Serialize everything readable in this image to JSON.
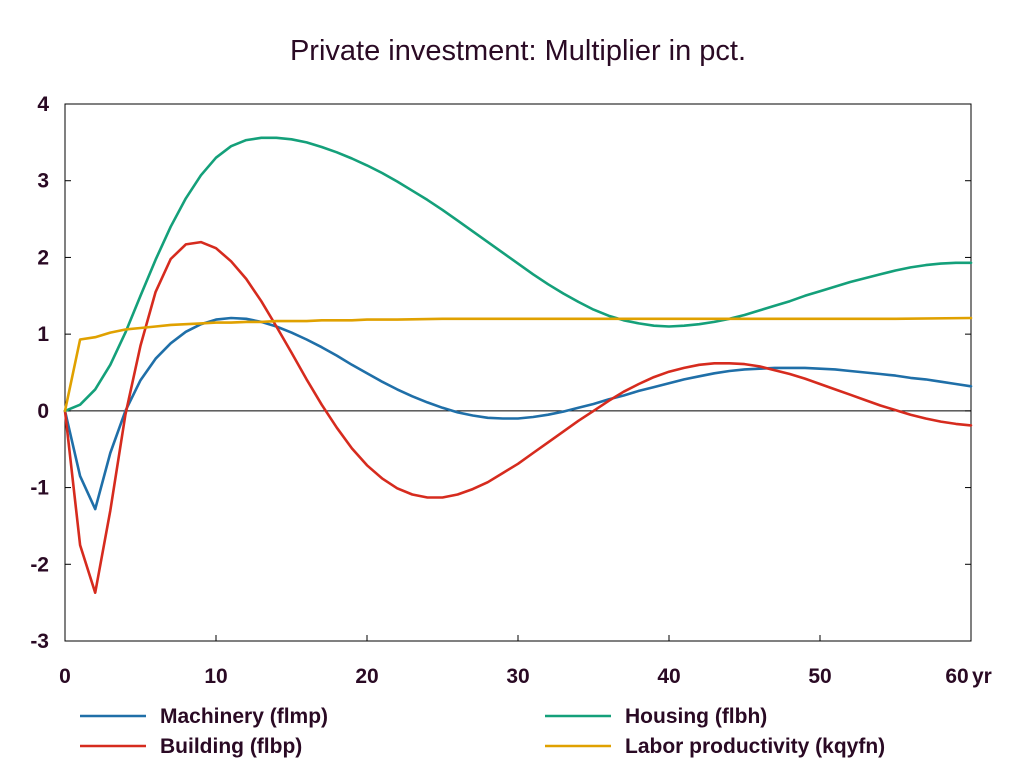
{
  "chart_data": {
    "type": "line",
    "title": "Private investment: Multiplier in pct.",
    "x_unit_label": "yr",
    "xlim": [
      0,
      60
    ],
    "ylim": [
      -3,
      4
    ],
    "x_ticks": [
      0,
      10,
      20,
      30,
      40,
      50,
      60
    ],
    "y_ticks": [
      -3,
      -2,
      -1,
      0,
      1,
      2,
      3,
      4
    ],
    "grid": false,
    "legend_placement": "bottom",
    "series": [
      {
        "name": "Machinery (flmp)",
        "color": "#1f6fa8",
        "points": [
          [
            0,
            0
          ],
          [
            1,
            -0.85
          ],
          [
            2,
            -1.28
          ],
          [
            3,
            -0.55
          ],
          [
            4,
            0
          ],
          [
            5,
            0.4
          ],
          [
            6,
            0.68
          ],
          [
            7,
            0.88
          ],
          [
            8,
            1.03
          ],
          [
            9,
            1.13
          ],
          [
            10,
            1.19
          ],
          [
            11,
            1.21
          ],
          [
            12,
            1.2
          ],
          [
            13,
            1.16
          ],
          [
            14,
            1.1
          ],
          [
            15,
            1.02
          ],
          [
            16,
            0.93
          ],
          [
            17,
            0.83
          ],
          [
            18,
            0.72
          ],
          [
            19,
            0.6
          ],
          [
            20,
            0.49
          ],
          [
            21,
            0.38
          ],
          [
            22,
            0.28
          ],
          [
            23,
            0.19
          ],
          [
            24,
            0.11
          ],
          [
            25,
            0.04
          ],
          [
            26,
            -0.02
          ],
          [
            27,
            -0.06
          ],
          [
            28,
            -0.09
          ],
          [
            29,
            -0.1
          ],
          [
            30,
            -0.1
          ],
          [
            31,
            -0.08
          ],
          [
            32,
            -0.05
          ],
          [
            33,
            -0.01
          ],
          [
            34,
            0.04
          ],
          [
            35,
            0.09
          ],
          [
            36,
            0.15
          ],
          [
            37,
            0.2
          ],
          [
            38,
            0.26
          ],
          [
            39,
            0.31
          ],
          [
            40,
            0.36
          ],
          [
            41,
            0.41
          ],
          [
            42,
            0.45
          ],
          [
            43,
            0.49
          ],
          [
            44,
            0.52
          ],
          [
            45,
            0.54
          ],
          [
            46,
            0.55
          ],
          [
            47,
            0.56
          ],
          [
            48,
            0.56
          ],
          [
            49,
            0.56
          ],
          [
            50,
            0.55
          ],
          [
            51,
            0.54
          ],
          [
            52,
            0.52
          ],
          [
            53,
            0.5
          ],
          [
            54,
            0.48
          ],
          [
            55,
            0.46
          ],
          [
            56,
            0.43
          ],
          [
            57,
            0.41
          ],
          [
            58,
            0.38
          ],
          [
            59,
            0.35
          ],
          [
            60,
            0.32
          ]
        ]
      },
      {
        "name": "Building (flbp)",
        "color": "#d62b1e",
        "points": [
          [
            0,
            0
          ],
          [
            1,
            -1.75
          ],
          [
            2,
            -2.37
          ],
          [
            3,
            -1.3
          ],
          [
            4,
            -0.05
          ],
          [
            5,
            0.85
          ],
          [
            6,
            1.55
          ],
          [
            7,
            1.98
          ],
          [
            8,
            2.17
          ],
          [
            9,
            2.2
          ],
          [
            10,
            2.12
          ],
          [
            11,
            1.95
          ],
          [
            12,
            1.72
          ],
          [
            13,
            1.43
          ],
          [
            14,
            1.1
          ],
          [
            15,
            0.76
          ],
          [
            16,
            0.41
          ],
          [
            17,
            0.08
          ],
          [
            18,
            -0.22
          ],
          [
            19,
            -0.49
          ],
          [
            20,
            -0.71
          ],
          [
            21,
            -0.88
          ],
          [
            22,
            -1.01
          ],
          [
            23,
            -1.09
          ],
          [
            24,
            -1.13
          ],
          [
            25,
            -1.13
          ],
          [
            26,
            -1.09
          ],
          [
            27,
            -1.02
          ],
          [
            28,
            -0.93
          ],
          [
            29,
            -0.81
          ],
          [
            30,
            -0.69
          ],
          [
            31,
            -0.55
          ],
          [
            32,
            -0.41
          ],
          [
            33,
            -0.27
          ],
          [
            34,
            -0.13
          ],
          [
            35,
            0
          ],
          [
            36,
            0.13
          ],
          [
            37,
            0.25
          ],
          [
            38,
            0.35
          ],
          [
            39,
            0.44
          ],
          [
            40,
            0.51
          ],
          [
            41,
            0.56
          ],
          [
            42,
            0.6
          ],
          [
            43,
            0.62
          ],
          [
            44,
            0.62
          ],
          [
            45,
            0.61
          ],
          [
            46,
            0.58
          ],
          [
            47,
            0.53
          ],
          [
            48,
            0.48
          ],
          [
            49,
            0.42
          ],
          [
            50,
            0.35
          ],
          [
            51,
            0.28
          ],
          [
            52,
            0.21
          ],
          [
            53,
            0.14
          ],
          [
            54,
            0.07
          ],
          [
            55,
            0.01
          ],
          [
            56,
            -0.05
          ],
          [
            57,
            -0.1
          ],
          [
            58,
            -0.14
          ],
          [
            59,
            -0.17
          ],
          [
            60,
            -0.19
          ]
        ]
      },
      {
        "name": "Housing (flbh)",
        "color": "#14a07a",
        "points": [
          [
            0,
            0
          ],
          [
            1,
            0.08
          ],
          [
            2,
            0.28
          ],
          [
            3,
            0.6
          ],
          [
            4,
            1.02
          ],
          [
            5,
            1.5
          ],
          [
            6,
            1.97
          ],
          [
            7,
            2.4
          ],
          [
            8,
            2.77
          ],
          [
            9,
            3.07
          ],
          [
            10,
            3.3
          ],
          [
            11,
            3.45
          ],
          [
            12,
            3.53
          ],
          [
            13,
            3.56
          ],
          [
            14,
            3.56
          ],
          [
            15,
            3.54
          ],
          [
            16,
            3.5
          ],
          [
            17,
            3.44
          ],
          [
            18,
            3.37
          ],
          [
            19,
            3.29
          ],
          [
            20,
            3.2
          ],
          [
            21,
            3.1
          ],
          [
            22,
            2.99
          ],
          [
            23,
            2.87
          ],
          [
            24,
            2.75
          ],
          [
            25,
            2.62
          ],
          [
            26,
            2.48
          ],
          [
            27,
            2.34
          ],
          [
            28,
            2.2
          ],
          [
            29,
            2.06
          ],
          [
            30,
            1.92
          ],
          [
            31,
            1.78
          ],
          [
            32,
            1.65
          ],
          [
            33,
            1.53
          ],
          [
            34,
            1.42
          ],
          [
            35,
            1.32
          ],
          [
            36,
            1.24
          ],
          [
            37,
            1.18
          ],
          [
            38,
            1.14
          ],
          [
            39,
            1.11
          ],
          [
            40,
            1.1
          ],
          [
            41,
            1.11
          ],
          [
            42,
            1.13
          ],
          [
            43,
            1.16
          ],
          [
            44,
            1.2
          ],
          [
            45,
            1.25
          ],
          [
            46,
            1.31
          ],
          [
            47,
            1.37
          ],
          [
            48,
            1.43
          ],
          [
            49,
            1.5
          ],
          [
            50,
            1.56
          ],
          [
            51,
            1.62
          ],
          [
            52,
            1.68
          ],
          [
            53,
            1.73
          ],
          [
            54,
            1.78
          ],
          [
            55,
            1.83
          ],
          [
            56,
            1.87
          ],
          [
            57,
            1.9
          ],
          [
            58,
            1.92
          ],
          [
            59,
            1.93
          ],
          [
            60,
            1.93
          ]
        ]
      },
      {
        "name": "Labor productivity (kqyfn)",
        "color": "#e0a100",
        "points": [
          [
            0,
            0
          ],
          [
            1,
            0.93
          ],
          [
            2,
            0.96
          ],
          [
            3,
            1.02
          ],
          [
            4,
            1.06
          ],
          [
            5,
            1.08
          ],
          [
            6,
            1.1
          ],
          [
            7,
            1.12
          ],
          [
            8,
            1.13
          ],
          [
            9,
            1.14
          ],
          [
            10,
            1.15
          ],
          [
            11,
            1.15
          ],
          [
            12,
            1.16
          ],
          [
            13,
            1.16
          ],
          [
            14,
            1.17
          ],
          [
            15,
            1.17
          ],
          [
            16,
            1.17
          ],
          [
            17,
            1.18
          ],
          [
            18,
            1.18
          ],
          [
            19,
            1.18
          ],
          [
            20,
            1.19
          ],
          [
            22,
            1.19
          ],
          [
            25,
            1.2
          ],
          [
            30,
            1.2
          ],
          [
            35,
            1.2
          ],
          [
            40,
            1.2
          ],
          [
            45,
            1.2
          ],
          [
            50,
            1.2
          ],
          [
            55,
            1.2
          ],
          [
            60,
            1.21
          ]
        ]
      }
    ]
  }
}
